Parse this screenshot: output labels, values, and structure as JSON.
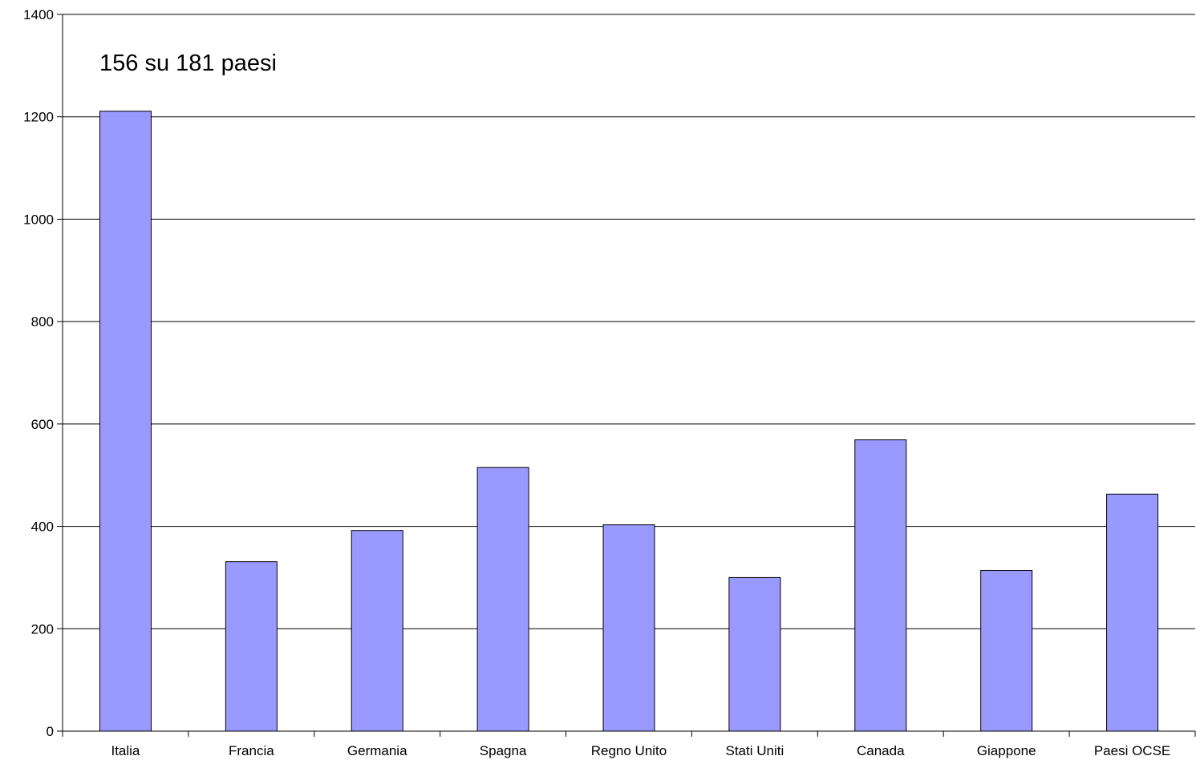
{
  "chart_data": {
    "type": "bar",
    "title": "",
    "xlabel": "",
    "ylabel": "",
    "annotation": "156 su 181 paesi",
    "categories": [
      "Italia",
      "Francia",
      "Germania",
      "Spagna",
      "Regno Unito",
      "Stati Uniti",
      "Canada",
      "Giappone",
      "Paesi OCSE"
    ],
    "values": [
      1211,
      331,
      392,
      515,
      403,
      300,
      569,
      314,
      463
    ],
    "ylim": [
      0,
      1400
    ],
    "yticks": [
      0,
      200,
      400,
      600,
      800,
      1000,
      1200,
      1400
    ],
    "grid": true,
    "legend": "none",
    "colors": {
      "bar": "#9999ff",
      "bar_stroke": "#000000",
      "grid": "#000000",
      "axis": "#000000"
    }
  }
}
